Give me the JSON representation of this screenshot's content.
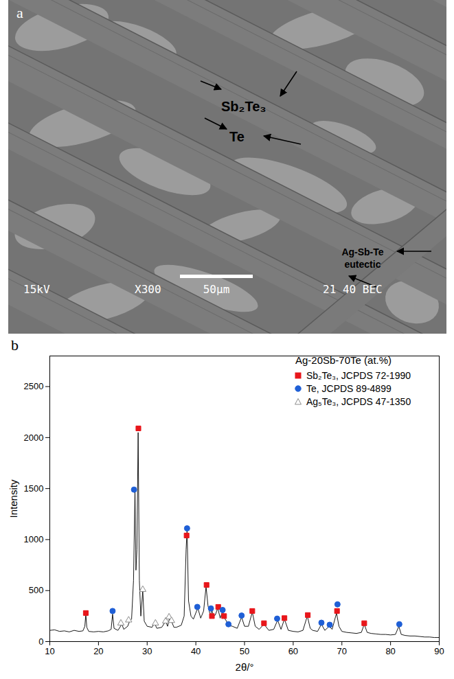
{
  "micrograph": {
    "panel_letter": "a",
    "phase_labels": [
      "Sb₂Te₃",
      "Te",
      "Ag-Sb-Te eutectic"
    ],
    "info_bar": [
      "15kV",
      "X300",
      "50μm",
      "21 40 BEC"
    ]
  },
  "chart_data": {
    "type": "line",
    "panel_letter": "b",
    "title": "Ag-20Sb-70Te (at.%)",
    "xlabel": "2θ/°",
    "ylabel": "Intensity",
    "color": "#000000",
    "x": [
      10,
      11,
      12,
      13,
      14,
      15,
      16,
      16.8,
      17.2,
      17.4,
      17.6,
      18,
      19,
      20,
      21,
      22,
      22.6,
      22.9,
      23.2,
      24,
      24.8,
      25.2,
      26,
      26.4,
      26.8,
      27.2,
      27.5,
      27.7,
      27.9,
      28.15,
      28.4,
      28.7,
      29.1,
      29.4,
      30,
      31,
      31.5,
      32,
      33,
      33.8,
      34.2,
      34.6,
      35,
      35.5,
      36,
      37,
      37.6,
      38,
      38.2,
      38.5,
      39,
      39.5,
      40.4,
      41,
      41.6,
      42.1,
      42.5,
      43,
      43.3,
      43.6,
      44,
      44.5,
      45,
      45.5,
      45.9,
      46.8,
      47.5,
      48.5,
      49.4,
      50,
      50.8,
      51.6,
      52.2,
      53,
      54,
      55,
      56,
      56.8,
      57.5,
      58.2,
      59,
      60,
      61,
      62,
      62.9,
      63.5,
      64,
      65,
      65.8,
      66.5,
      67.4,
      68,
      68.9,
      69.4,
      70,
      71,
      72,
      73,
      74,
      74.6,
      75.2,
      76,
      77,
      78,
      79,
      80,
      81,
      81.7,
      82.2,
      83,
      84,
      85,
      86,
      87,
      88,
      89,
      90
    ],
    "values": [
      110,
      115,
      100,
      105,
      95,
      110,
      100,
      105,
      150,
      270,
      140,
      100,
      95,
      100,
      95,
      105,
      120,
      270,
      130,
      110,
      170,
      120,
      150,
      200,
      220,
      600,
      1480,
      700,
      900,
      2050,
      600,
      250,
      500,
      200,
      150,
      140,
      180,
      130,
      140,
      200,
      150,
      230,
      200,
      140,
      140,
      160,
      250,
      900,
      1100,
      400,
      250,
      220,
      330,
      230,
      300,
      540,
      350,
      250,
      310,
      250,
      260,
      330,
      230,
      300,
      230,
      160,
      150,
      130,
      240,
      150,
      150,
      290,
      150,
      120,
      170,
      110,
      120,
      210,
      120,
      220,
      110,
      100,
      95,
      110,
      250,
      130,
      110,
      100,
      170,
      110,
      150,
      120,
      280,
      150,
      100,
      90,
      85,
      80,
      90,
      170,
      90,
      80,
      75,
      70,
      70,
      65,
      70,
      150,
      70,
      60,
      55,
      55,
      50,
      45,
      45,
      40,
      40
    ],
    "series": [
      {
        "name": "Sb₂Te₃, JCPDS 72-1990",
        "type": "scatter",
        "marker": "square",
        "color": "#e8161b",
        "x": [
          17.4,
          28.2,
          38.1,
          42.2,
          43.3,
          44.6,
          45.8,
          51.6,
          54,
          58.2,
          63,
          69,
          74.6
        ],
        "values": [
          280,
          2090,
          1040,
          555,
          250,
          340,
          250,
          300,
          180,
          230,
          260,
          300,
          180
        ]
      },
      {
        "name": "Te, JCPDS 89-4899",
        "type": "scatter",
        "marker": "circle",
        "color": "#1f5fd6",
        "x": [
          22.9,
          27.3,
          38.2,
          40.3,
          43.1,
          45.5,
          46.7,
          49.4,
          56.7,
          65.8,
          67.5,
          69.1,
          81.8
        ],
        "values": [
          300,
          1490,
          1110,
          340,
          325,
          310,
          170,
          255,
          225,
          185,
          165,
          365,
          170
        ]
      },
      {
        "name": "Ag₅Te₃, JCPDS 47-1350",
        "type": "scatter",
        "marker": "open_triangle",
        "color": "#8c8c8c",
        "x": [
          24.6,
          26.2,
          29.1,
          31.7,
          33.8,
          34.5,
          35
        ],
        "values": [
          180,
          210,
          510,
          180,
          200,
          240,
          205
        ]
      }
    ],
    "xlim": [
      10,
      90
    ],
    "xticks": [
      10,
      20,
      30,
      40,
      50,
      60,
      70,
      80,
      90
    ],
    "ylim": [
      0,
      2800
    ],
    "yticks": [
      0,
      500,
      1000,
      1500,
      2000,
      2500
    ],
    "legend": "upper right"
  }
}
